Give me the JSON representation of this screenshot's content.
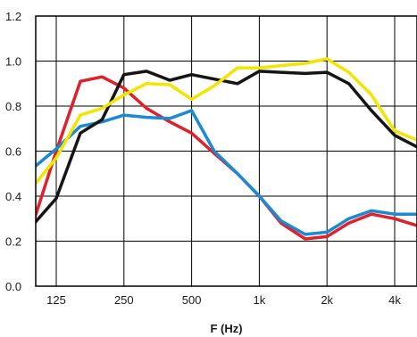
{
  "chart_data": {
    "type": "line",
    "title": "",
    "xlabel": "F (Hz)",
    "ylabel": "",
    "ylim": [
      0,
      1.2
    ],
    "x_scale": "log",
    "grid": true,
    "legend": "none",
    "y_ticks": [
      {
        "value": 0.0,
        "label": "0.0"
      },
      {
        "value": 0.2,
        "label": "0.2"
      },
      {
        "value": 0.4,
        "label": "0.4"
      },
      {
        "value": 0.6,
        "label": "0.6"
      },
      {
        "value": 0.8,
        "label": "0.8"
      },
      {
        "value": 1.0,
        "label": "1.0"
      },
      {
        "value": 1.2,
        "label": "1.2"
      }
    ],
    "x_ticks": [
      {
        "value": 125,
        "label": "125"
      },
      {
        "value": 250,
        "label": "250"
      },
      {
        "value": 500,
        "label": "500"
      },
      {
        "value": 1000,
        "label": "1k"
      },
      {
        "value": 2000,
        "label": "2k"
      },
      {
        "value": 4000,
        "label": "4k"
      }
    ],
    "x": [
      100,
      125,
      160,
      200,
      250,
      315,
      400,
      500,
      630,
      800,
      1000,
      1250,
      1600,
      2000,
      2500,
      3150,
      4000,
      5000
    ],
    "series": [
      {
        "color": "#e0202a",
        "values": [
          0.3,
          0.6,
          0.91,
          0.93,
          0.88,
          0.79,
          0.73,
          0.68,
          0.59,
          0.5,
          0.4,
          0.28,
          0.21,
          0.22,
          0.28,
          0.32,
          0.3,
          0.27
        ]
      },
      {
        "color": "#1a8ad4",
        "values": [
          0.53,
          0.61,
          0.71,
          0.73,
          0.76,
          0.75,
          0.745,
          0.78,
          0.6,
          0.5,
          0.4,
          0.29,
          0.23,
          0.24,
          0.3,
          0.335,
          0.32,
          0.32
        ]
      },
      {
        "color": "#151515",
        "values": [
          0.28,
          0.39,
          0.68,
          0.74,
          0.94,
          0.955,
          0.915,
          0.94,
          0.92,
          0.9,
          0.955,
          0.95,
          0.945,
          0.95,
          0.9,
          0.78,
          0.67,
          0.62
        ]
      },
      {
        "color": "#f2e600",
        "values": [
          0.45,
          0.57,
          0.76,
          0.79,
          0.85,
          0.9,
          0.895,
          0.83,
          0.89,
          0.97,
          0.97,
          0.98,
          0.99,
          1.01,
          0.95,
          0.85,
          0.69,
          0.65
        ]
      }
    ]
  }
}
